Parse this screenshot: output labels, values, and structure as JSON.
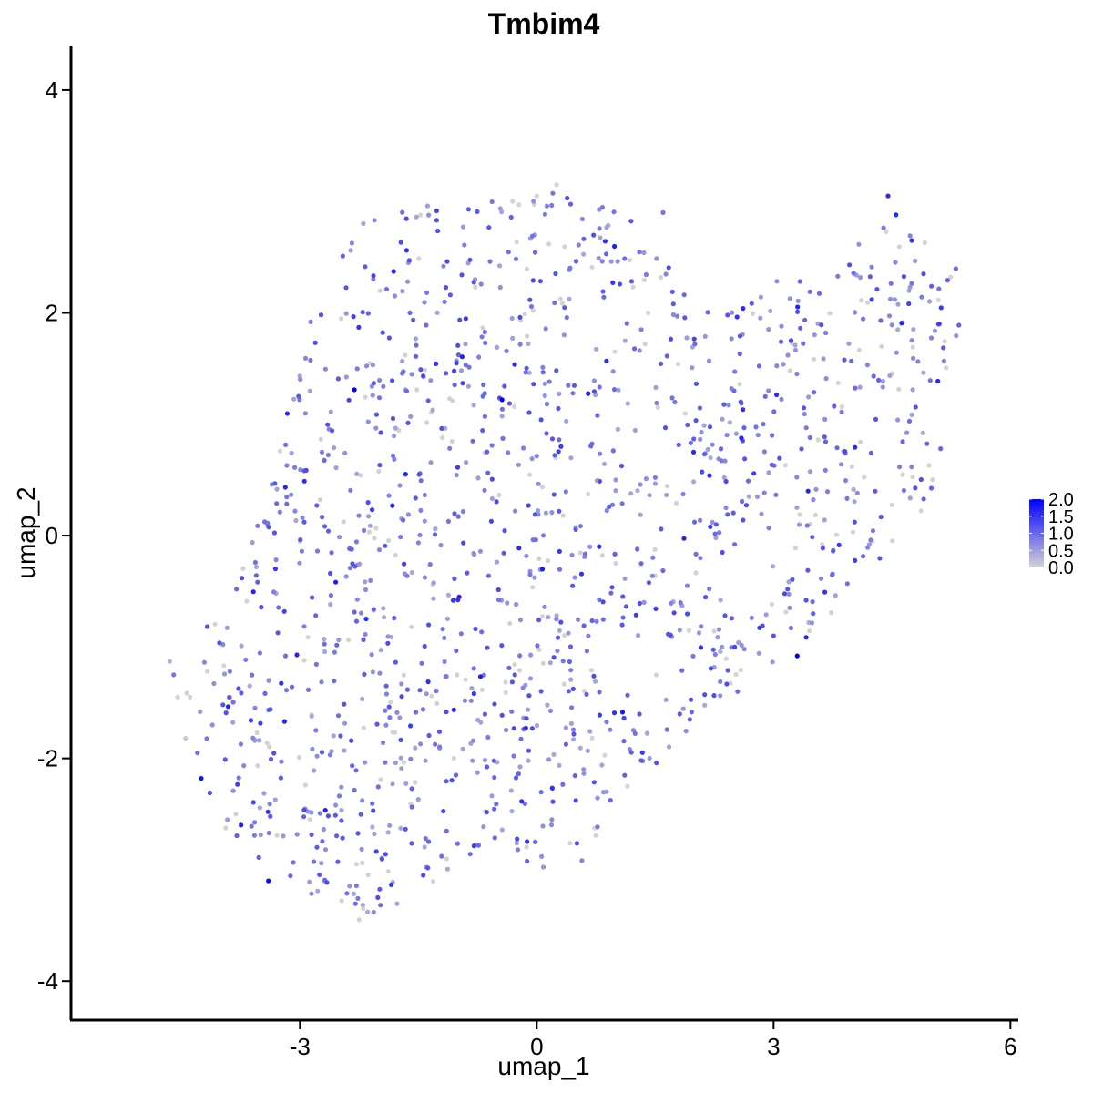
{
  "chart_data": {
    "type": "scatter",
    "title": "Tmbim4",
    "xlabel": "umap_1",
    "ylabel": "umap_2",
    "xlim": [
      -5.9,
      6.1
    ],
    "ylim": [
      -4.35,
      4.4
    ],
    "x_ticks": [
      -3,
      0,
      3,
      6
    ],
    "y_ticks": [
      -4,
      -2,
      0,
      2,
      4
    ],
    "x_tick_labels": [
      "-3",
      "0",
      "3",
      "6"
    ],
    "y_tick_labels": [
      "-4",
      "-2",
      "0",
      "2",
      "4"
    ],
    "grid": false,
    "legend": {
      "placement": "right",
      "type": "color-gradient",
      "min": 0.0,
      "max": 2.0,
      "ticks": [
        "0.0",
        "0.5",
        "1.0",
        "1.5",
        "2.0"
      ]
    },
    "colors": {
      "low": "#d3d3d3",
      "high": "#0000ff"
    },
    "n_points_approx": 1500,
    "points": [
      [
        -2.31,
        1.31,
        2.0
      ],
      [
        -0.44,
        1.22,
        2.0
      ],
      [
        3.3,
        -1.08,
        2.0
      ],
      [
        -3.4,
        -3.1,
        1.9
      ],
      [
        -4.25,
        -2.18,
        1.8
      ],
      [
        4.45,
        3.05,
        1.6
      ],
      [
        4.55,
        2.88,
        1.6
      ],
      [
        4.75,
        2.65,
        1.5
      ],
      [
        4.9,
        2.35,
        1.3
      ],
      [
        5.1,
        1.9,
        1.4
      ],
      [
        -4.6,
        -1.25,
        0.9
      ],
      [
        -4.65,
        -1.13,
        0.3
      ],
      [
        -4.55,
        -1.45,
        0.0
      ],
      [
        -4.45,
        -1.82,
        0.1
      ],
      [
        -4.3,
        -1.95,
        0.9
      ],
      [
        -2.2,
        -3.35,
        0.0
      ],
      [
        -2.25,
        -3.45,
        0.0
      ],
      [
        0.0,
        3.05,
        0.0
      ],
      [
        0.25,
        3.15,
        0.0
      ],
      [
        1.6,
        2.9,
        0.9
      ],
      [
        2.5,
        1.3,
        1.0
      ],
      [
        3.0,
        -0.9,
        1.2
      ],
      [
        3.5,
        -0.7,
        1.1
      ],
      [
        1.0,
        0.5,
        0.6
      ],
      [
        2.2,
        0.7,
        0.4
      ]
    ]
  }
}
